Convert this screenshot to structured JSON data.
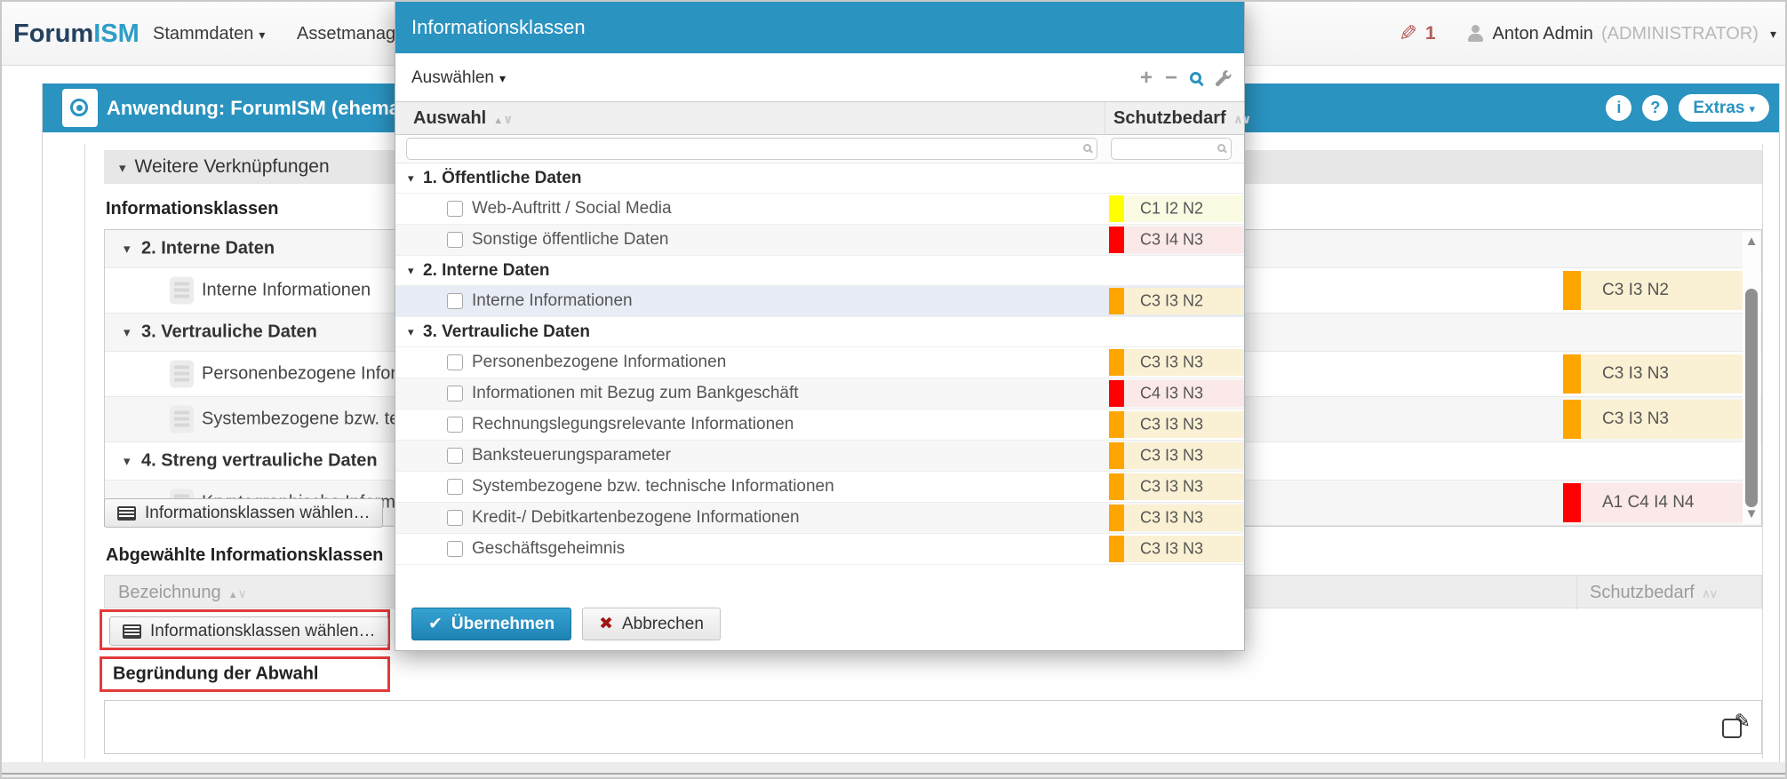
{
  "navbar": {
    "logo_part1": "Forum",
    "logo_part2": "ISM",
    "menu1": "Stammdaten",
    "menu2": "Assetmanage",
    "edit_count": "1",
    "user_name": "Anton Admin",
    "user_role": "(ADMINISTRATOR)"
  },
  "header_bar": {
    "title": "Anwendung: ForumISM (ehemal",
    "info_label": "i",
    "help_label": "?",
    "extras_label": "Extras"
  },
  "section": {
    "weitere": "Weitere Verknüpfungen"
  },
  "left": {
    "heading": "Informationsklassen",
    "tree": [
      {
        "type": "group",
        "label": "2. Interne Daten"
      },
      {
        "type": "item",
        "label": "Interne Informationen",
        "badge": "C3 I3 N2",
        "level": "orange"
      },
      {
        "type": "group",
        "label": "3. Vertrauliche Daten"
      },
      {
        "type": "item",
        "label": "Personenbezogene Informationen",
        "badge": "C3 I3 N3",
        "level": "orange"
      },
      {
        "type": "item",
        "label": "Systembezogene bzw. technische Informationen",
        "badge": "C3 I3 N3",
        "level": "orange"
      },
      {
        "type": "group",
        "label": "4. Streng vertrauliche Daten"
      },
      {
        "type": "item",
        "label": "Kryptographische Informationen",
        "badge": "A1 C4 I4 N4",
        "level": "red",
        "checked": true
      }
    ],
    "choose_button": "Informationsklassen wählen…",
    "deselected_heading": "Abgewählte Informationsklassen",
    "col_bezeichnung": "Bezeichnung",
    "col_schutzbedarf": "Schutzbedarf",
    "choose_button2": "Informationsklassen wählen…",
    "reason_label": "Begründung der Abwahl"
  },
  "modal": {
    "title": "Informationsklassen",
    "select_label": "Auswählen",
    "col_auswahl": "Auswahl",
    "col_schutzbedarf": "Schutzbedarf",
    "groups": [
      {
        "label": "1. Öffentliche Daten",
        "items": [
          {
            "label": "Web-Auftritt / Social Media",
            "badge": "C1 I2 N2",
            "level": "yellow"
          },
          {
            "label": "Sonstige öffentliche Daten",
            "badge": "C3 I4 N3",
            "level": "red"
          }
        ]
      },
      {
        "label": "2. Interne Daten",
        "items": [
          {
            "label": "Interne Informationen",
            "badge": "C3 I3 N2",
            "level": "orange",
            "selected": true
          }
        ]
      },
      {
        "label": "3. Vertrauliche Daten",
        "items": [
          {
            "label": "Personenbezogene Informationen",
            "badge": "C3 I3 N3",
            "level": "orange"
          },
          {
            "label": "Informationen mit Bezug zum Bankgeschäft",
            "badge": "C4 I3 N3",
            "level": "red"
          },
          {
            "label": "Rechnungslegungsrelevante Informationen",
            "badge": "C3 I3 N3",
            "level": "orange"
          },
          {
            "label": "Banksteuerungsparameter",
            "badge": "C3 I3 N3",
            "level": "orange"
          },
          {
            "label": "Systembezogene bzw. technische Informationen",
            "badge": "C3 I3 N3",
            "level": "orange"
          },
          {
            "label": "Kredit-/ Debitkartenbezogene Informationen",
            "badge": "C3 I3 N3",
            "level": "orange"
          },
          {
            "label": "Geschäftsgeheimnis",
            "badge": "C3 I3 N3",
            "level": "orange"
          }
        ]
      }
    ],
    "apply_label": "Übernehmen",
    "cancel_label": "Abbrechen"
  },
  "levels": {
    "yellow": {
      "bar": "#ffff00",
      "bg": "#fbfbe3"
    },
    "orange": {
      "bar": "#ffa500",
      "bg": "#faf0d3"
    },
    "red": {
      "bar": "#ff0000",
      "bg": "#fbe8e8"
    }
  },
  "colors": {
    "accent": "#2a93c0",
    "highlight": "#e23b3b"
  }
}
